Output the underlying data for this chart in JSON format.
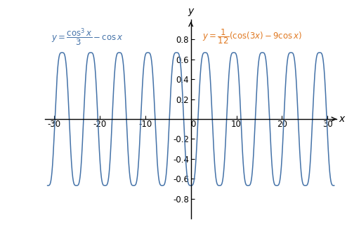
{
  "xlim": [
    -32,
    32
  ],
  "ylim": [
    -1.0,
    1.0
  ],
  "xticks": [
    -30,
    -20,
    -10,
    0,
    10,
    20,
    30
  ],
  "yticks": [
    -0.8,
    -0.6,
    -0.4,
    -0.2,
    0.2,
    0.4,
    0.6,
    0.8
  ],
  "line_color": "#4472a8",
  "label_left_color": "#4472a8",
  "label_right_color": "#e07820",
  "background_color": "#ffffff",
  "xlabel": "x",
  "ylabel": "y",
  "figsize": [
    4.94,
    3.47
  ],
  "dpi": 100
}
